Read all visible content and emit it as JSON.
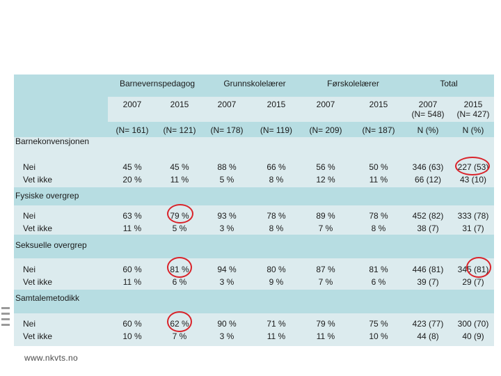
{
  "columns": {
    "groups": [
      "Barnevernspedagog",
      "Grunnskolelærer",
      "Førskolelærer",
      "Total"
    ],
    "years": [
      "2007",
      "2015",
      "2007",
      "2015",
      "2007",
      "2015",
      "2007\n(N= 548)",
      "2015\n(N= 427)"
    ],
    "counts": [
      "(N= 161)",
      "(N= 121)",
      "(N= 178)",
      "(N= 119)",
      "(N= 209)",
      "(N= 187)",
      "N (%)",
      "N (%)"
    ]
  },
  "sections": [
    {
      "title": "Barnekonvensjonen",
      "rows": [
        {
          "label": "Nei",
          "values": [
            "45 %",
            "45 %",
            "88 %",
            "66 %",
            "56 %",
            "50 %",
            "346 (63)",
            "227 (53)"
          ]
        },
        {
          "label": "Vet ikke",
          "values": [
            "20 %",
            "11 %",
            "5 %",
            "8 %",
            "12 %",
            "11 %",
            "66 (12)",
            "43 (10)"
          ]
        }
      ]
    },
    {
      "title": "Fysiske overgrep",
      "rows": [
        {
          "label": "Nei",
          "values": [
            "63 %",
            "79 %",
            "93 %",
            "78 %",
            "89 %",
            "78 %",
            "452 (82)",
            "333 (78)"
          ]
        },
        {
          "label": "Vet ikke",
          "values": [
            "11 %",
            "5 %",
            "3 %",
            "8 %",
            "7 %",
            "8 %",
            "38 (7)",
            "31 (7)"
          ]
        }
      ]
    },
    {
      "title": "Seksuelle overgrep",
      "rows": [
        {
          "label": "Nei",
          "values": [
            "60 %",
            "81 %",
            "94 %",
            "80 %",
            "87 %",
            "81 %",
            "446 (81)",
            "345 (81)"
          ]
        },
        {
          "label": "Vet ikke",
          "values": [
            "11 %",
            "6 %",
            "3 %",
            "9 %",
            "7 %",
            "6 %",
            "39 (7)",
            "29 (7)"
          ]
        }
      ]
    },
    {
      "title": "Samtalemetodikk",
      "rows": [
        {
          "label": "Nei",
          "values": [
            "60 %",
            "62 %",
            "90 %",
            "71 %",
            "79 %",
            "75 %",
            "423 (77)",
            "300 (70)"
          ]
        },
        {
          "label": "Vet ikke",
          "values": [
            "10 %",
            "7 %",
            "3 %",
            "11 %",
            "11 %",
            "10 %",
            "44 (8)",
            "40 (9)"
          ]
        }
      ]
    }
  ],
  "footer": "www.nkvts.no",
  "colors": {
    "header": "#b7dde2",
    "row_band": "#dcebee",
    "highlight_circle": "#d9232a"
  }
}
